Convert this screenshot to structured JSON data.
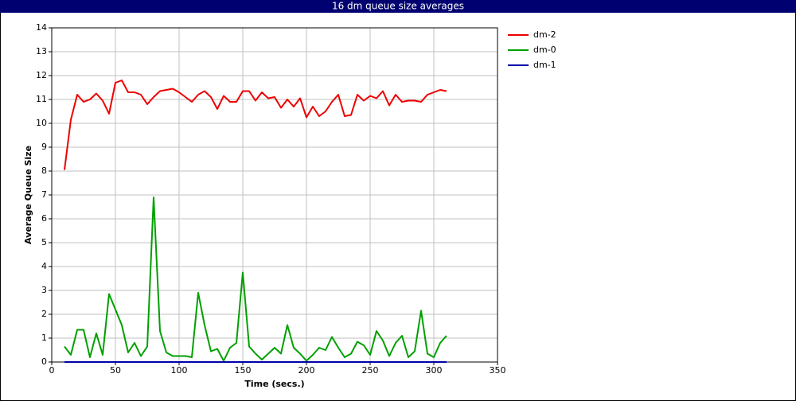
{
  "chart_data": {
    "type": "line",
    "title": "16 dm queue size averages",
    "xlabel": "Time (secs.)",
    "ylabel": "Average Queue Size",
    "x": [
      10,
      15,
      20,
      25,
      30,
      35,
      40,
      45,
      50,
      55,
      60,
      65,
      70,
      75,
      80,
      85,
      90,
      95,
      100,
      105,
      110,
      115,
      120,
      125,
      130,
      135,
      140,
      145,
      150,
      155,
      160,
      165,
      170,
      175,
      180,
      185,
      190,
      195,
      200,
      205,
      210,
      215,
      220,
      225,
      230,
      235,
      240,
      245,
      250,
      255,
      260,
      265,
      270,
      275,
      280,
      285,
      290,
      295,
      300,
      305,
      310
    ],
    "series": [
      {
        "name": "dm-2",
        "color": "#ee0000",
        "values": [
          8.05,
          10.15,
          11.2,
          10.9,
          11.0,
          11.25,
          10.95,
          10.4,
          11.7,
          11.8,
          11.3,
          11.3,
          11.2,
          10.8,
          11.1,
          11.35,
          11.4,
          11.45,
          11.3,
          11.1,
          10.9,
          11.2,
          11.35,
          11.1,
          10.6,
          11.15,
          10.9,
          10.9,
          11.35,
          11.35,
          10.95,
          11.3,
          11.05,
          11.1,
          10.65,
          11.0,
          10.7,
          11.05,
          10.25,
          10.7,
          10.3,
          10.5,
          10.9,
          11.2,
          10.3,
          10.35,
          11.2,
          10.95,
          11.15,
          11.05,
          11.35,
          10.75,
          11.2,
          10.9,
          10.95,
          10.95,
          10.9,
          11.2,
          11.3,
          11.4,
          11.35
        ]
      },
      {
        "name": "dm-0",
        "color": "#00a000",
        "values": [
          0.65,
          0.3,
          1.35,
          1.35,
          0.2,
          1.2,
          0.3,
          2.85,
          2.2,
          1.55,
          0.4,
          0.8,
          0.25,
          0.65,
          6.9,
          1.3,
          0.4,
          0.25,
          0.25,
          0.25,
          0.2,
          2.9,
          1.55,
          0.45,
          0.55,
          0.05,
          0.6,
          0.8,
          3.75,
          0.65,
          0.35,
          0.1,
          0.35,
          0.6,
          0.35,
          1.55,
          0.6,
          0.35,
          0.05,
          0.3,
          0.6,
          0.5,
          1.05,
          0.6,
          0.2,
          0.35,
          0.85,
          0.7,
          0.3,
          1.3,
          0.9,
          0.25,
          0.8,
          1.1,
          0.2,
          0.45,
          2.15,
          0.35,
          0.2,
          0.8,
          1.1
        ]
      },
      {
        "name": "dm-1",
        "color": "#0000aa",
        "values": [
          0,
          0,
          0,
          0,
          0,
          0,
          0,
          0,
          0,
          0,
          0,
          0,
          0,
          0,
          0,
          0,
          0,
          0,
          0,
          0,
          0,
          0,
          0,
          0,
          0,
          0,
          0,
          0,
          0,
          0,
          0,
          0,
          0,
          0,
          0,
          0,
          0,
          0,
          0,
          0,
          0,
          0,
          0,
          0,
          0,
          0,
          0,
          0,
          0,
          0,
          0,
          0,
          0,
          0,
          0,
          0,
          0,
          0,
          0,
          0,
          0
        ]
      }
    ],
    "xlim": [
      0,
      350
    ],
    "xticks": [
      0,
      50,
      100,
      150,
      200,
      250,
      300,
      350
    ],
    "ylim": [
      0,
      14
    ],
    "yticks": [
      0,
      1,
      2,
      3,
      4,
      5,
      6,
      7,
      8,
      9,
      10,
      11,
      12,
      13,
      14
    ],
    "grid": true,
    "legend": "right"
  }
}
